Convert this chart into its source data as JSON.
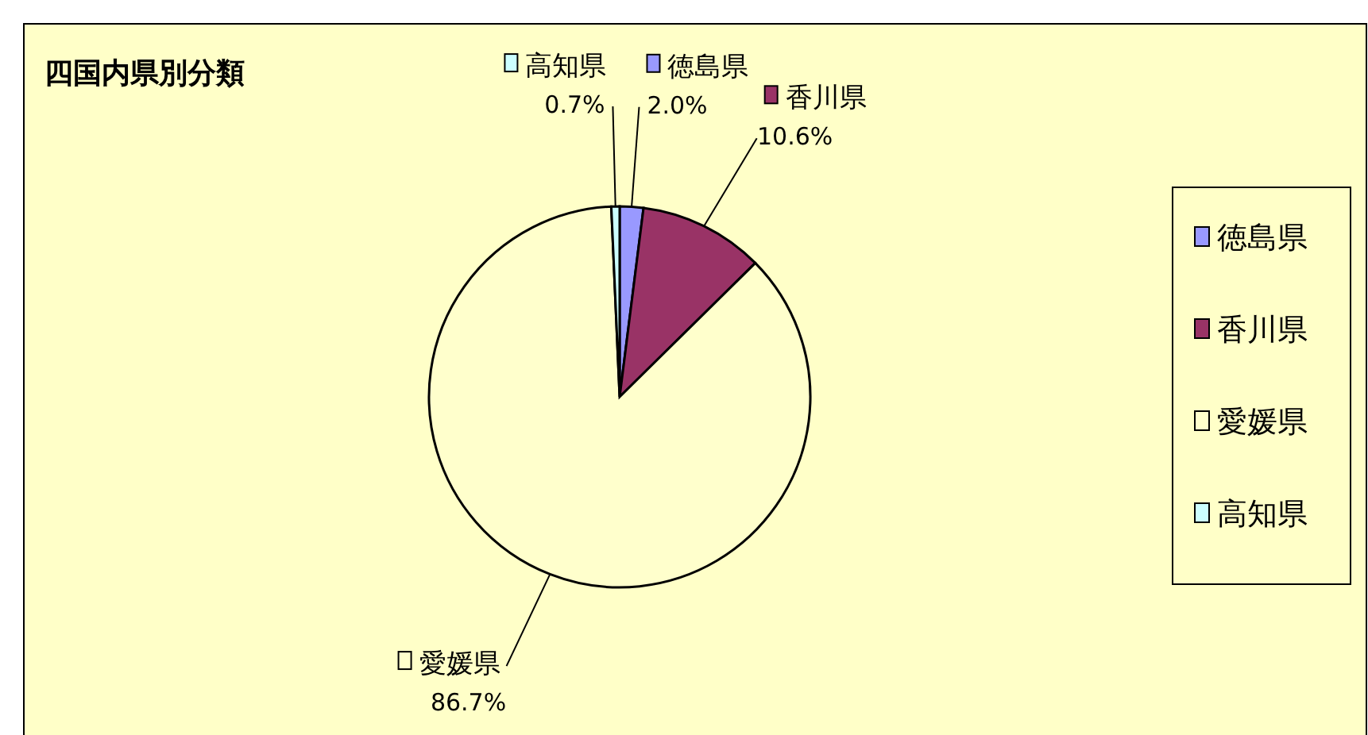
{
  "chart_data": {
    "type": "pie",
    "title": "四国内県別分類",
    "categories": [
      "徳島県",
      "香川県",
      "愛媛県",
      "高知県"
    ],
    "values": [
      2.0,
      10.6,
      86.7,
      0.7
    ],
    "value_labels": [
      "2.0%",
      "10.6%",
      "86.7%",
      "0.7%"
    ],
    "colors": [
      "#9999ff",
      "#993366",
      "#ffffcc",
      "#ccffff"
    ],
    "legend": "right"
  }
}
